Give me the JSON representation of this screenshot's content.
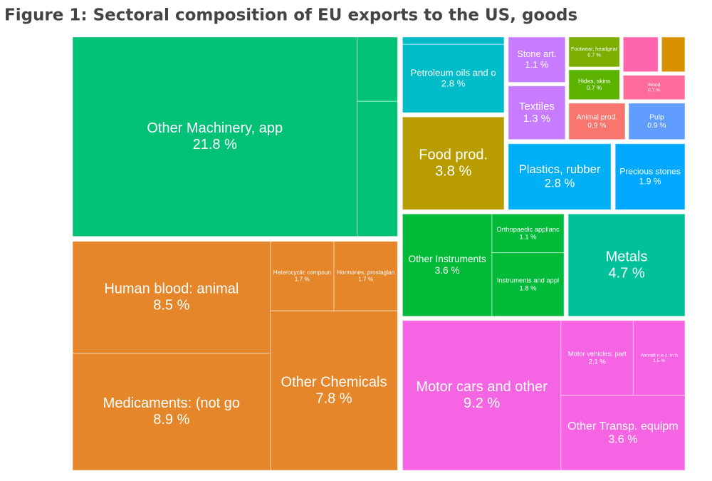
{
  "chart_data": {
    "type": "treemap",
    "title": "Figure 1: Sectoral composition of EU exports to the US, goods",
    "categories": [
      "Other Machinery, app",
      null,
      null,
      "Human blood: animal",
      "Medicaments: (not go",
      "Heterocyclic compoun",
      "Hormones, prostaglan",
      "Other Chemicals",
      null,
      "Petroleum oils and o",
      "Food prod.",
      "Stone art.",
      "Textiles",
      "Footwear, headgear",
      "Hides, skins",
      null,
      null,
      "Wood",
      "Animal prod.",
      "Pulp",
      "Plastics, rubber",
      "Precious stones",
      "Other Instruments",
      "Orthopaedic applianc",
      "Instruments and appl",
      "Metals",
      "Motor cars and other",
      "Motor vehicles: part",
      "Aircraft n.e.c. in h",
      "Other Transp. equipm"
    ],
    "values": [
      21.8,
      1.0,
      2.1,
      8.5,
      8.9,
      1.7,
      1.7,
      7.8,
      0.3,
      2.8,
      3.8,
      1.1,
      1.3,
      0.7,
      0.7,
      0.6,
      0.4,
      0.7,
      0.9,
      0.9,
      2.8,
      1.9,
      3.6,
      1.1,
      1.8,
      4.7,
      9.2,
      2.1,
      1.5,
      3.6
    ],
    "value_labels": [
      "21.8 %",
      null,
      null,
      "8.5 %",
      "8.9 %",
      "1.7 %",
      "1.7 %",
      "7.8 %",
      null,
      "2.8 %",
      "3.8 %",
      "1.1 %",
      "1.3 %",
      "0.7 %",
      "0.7 %",
      null,
      null,
      "0.7 %",
      "0.9 %",
      "0.9 %",
      "2.8 %",
      "1.9 %",
      "3.6 %",
      "1.1 %",
      "1.8 %",
      "4.7 %",
      "9.2 %",
      "2.1 %",
      "1.5 %",
      "3.6 %"
    ],
    "colors": [
      "#00c176",
      "#00c176",
      "#00c176",
      "#e6862a",
      "#e6862a",
      "#e6862a",
      "#e6862a",
      "#e6862a",
      "#00bcc8",
      "#00bcc8",
      "#b89c00",
      "#c77cff",
      "#c77cff",
      "#7cae00",
      "#5bb300",
      "#ff65ac",
      "#d89000",
      "#ff6c9c",
      "#f8766d",
      "#619cff",
      "#00b0f6",
      "#00a9ff",
      "#00ba38",
      "#00ba38",
      "#00ba38",
      "#00c19a",
      "#f564e3",
      "#f564e3",
      "#f564e3",
      "#f564e3"
    ]
  }
}
